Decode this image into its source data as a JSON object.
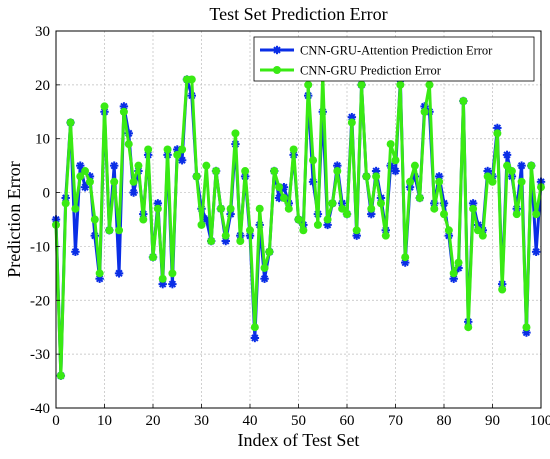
{
  "chart_data": {
    "type": "line",
    "title": "Test Set Prediction Error",
    "xlabel": "Index of Test Set",
    "ylabel": "Prediction Error",
    "xlim": [
      0,
      100
    ],
    "ylim": [
      -40,
      30
    ],
    "xticks": [
      0,
      10,
      20,
      30,
      40,
      50,
      60,
      70,
      80,
      90,
      100
    ],
    "yticks": [
      -40,
      -30,
      -20,
      -10,
      0,
      10,
      20,
      30
    ],
    "x_tick_labels": [
      "0",
      "10",
      "20",
      "30",
      "40",
      "50",
      "60",
      "70",
      "80",
      "90",
      "100"
    ],
    "y_tick_labels": [
      "-40",
      "-30",
      "-20",
      "-10",
      "0",
      "10",
      "20",
      "30"
    ],
    "grid": true,
    "legend_position": "top-right",
    "series": [
      {
        "name": "CNN-GRU-Attention Prediction Error",
        "color": "#0a2ee6",
        "marker": "asterisk",
        "x": [
          0,
          1,
          2,
          3,
          4,
          5,
          6,
          7,
          8,
          9,
          10,
          11,
          12,
          13,
          14,
          15,
          16,
          17,
          18,
          19,
          20,
          21,
          22,
          23,
          24,
          25,
          26,
          27,
          28,
          29,
          30,
          31,
          32,
          33,
          34,
          35,
          36,
          37,
          38,
          39,
          40,
          41,
          42,
          43,
          44,
          45,
          46,
          47,
          48,
          49,
          50,
          51,
          52,
          53,
          54,
          55,
          56,
          57,
          58,
          59,
          60,
          61,
          62,
          63,
          64,
          65,
          66,
          67,
          68,
          69,
          70,
          71,
          72,
          73,
          74,
          75,
          76,
          77,
          78,
          79,
          80,
          81,
          82,
          83,
          84,
          85,
          86,
          87,
          88,
          89,
          90,
          91,
          92,
          93,
          94,
          95,
          96,
          97,
          98,
          99,
          100
        ],
        "values": [
          -5,
          -34,
          -1,
          13,
          -11,
          5,
          1,
          3,
          -8,
          -16,
          15,
          -7,
          5,
          -15,
          16,
          11,
          0,
          4,
          -4,
          7,
          -12,
          -2,
          -17,
          7,
          -17,
          8,
          6,
          21,
          18,
          3,
          -3,
          -5,
          -9,
          4,
          -3,
          -9,
          -4,
          9,
          -8,
          3,
          -8,
          -27,
          -6,
          -16,
          -11,
          4,
          -1,
          1,
          -2,
          7,
          -5,
          -6,
          18,
          2,
          -4,
          15,
          -6,
          -2,
          5,
          -2,
          -4,
          14,
          -8,
          20,
          3,
          -4,
          4,
          -1,
          -7,
          5,
          4,
          21,
          -13,
          1,
          3,
          -1,
          16,
          15,
          -2,
          3,
          -2,
          -8,
          -16,
          -14,
          17,
          -24,
          -2,
          -6,
          -7,
          4,
          3,
          12,
          -17,
          7,
          3,
          -3,
          5,
          -26,
          5,
          -11,
          2
        ],
        "visible_range": [
          0,
          100
        ]
      },
      {
        "name": "CNN-GRU Prediction Error",
        "color": "#39ea13",
        "marker": "circle",
        "x": [
          0,
          1,
          2,
          3,
          4,
          5,
          6,
          7,
          8,
          9,
          10,
          11,
          12,
          13,
          14,
          15,
          16,
          17,
          18,
          19,
          20,
          21,
          22,
          23,
          24,
          25,
          26,
          27,
          28,
          29,
          30,
          31,
          32,
          33,
          34,
          35,
          36,
          37,
          38,
          39,
          40,
          41,
          42,
          43,
          44,
          45,
          46,
          47,
          48,
          49,
          50,
          51,
          52,
          53,
          54,
          55,
          56,
          57,
          58,
          59,
          60,
          61,
          62,
          63,
          64,
          65,
          66,
          67,
          68,
          69,
          70,
          71,
          72,
          73,
          74,
          75,
          76,
          77,
          78,
          79,
          80,
          81,
          82,
          83,
          84,
          85,
          86,
          87,
          88,
          89,
          90,
          91,
          92,
          93,
          94,
          95,
          96,
          97,
          98,
          99,
          100
        ],
        "values": [
          -6,
          -34,
          -2,
          13,
          -3,
          3,
          4,
          2,
          -5,
          -15,
          16,
          -7,
          2,
          -7,
          15,
          9,
          2,
          5,
          -5,
          8,
          -12,
          -3,
          -16,
          8,
          -15,
          7,
          8,
          21,
          21,
          3,
          -6,
          5,
          -9,
          4,
          -3,
          -8,
          -3,
          11,
          -9,
          4,
          -7,
          -25,
          -3,
          -14,
          -11,
          4,
          1,
          -1,
          -3,
          8,
          -5,
          -7,
          20,
          6,
          -6,
          22,
          -5,
          -2,
          4,
          -3,
          -4,
          13,
          -7,
          20,
          3,
          -3,
          3,
          -2,
          -8,
          9,
          6,
          20,
          -12,
          2,
          5,
          -1,
          15,
          20,
          -3,
          2,
          -4,
          -7,
          -15,
          -13,
          17,
          -25,
          -3,
          -7,
          -8,
          3,
          2,
          11,
          -18,
          5,
          4,
          -4,
          2,
          -25,
          5,
          -4,
          1
        ],
        "visible_range": [
          0,
          100
        ]
      }
    ]
  }
}
